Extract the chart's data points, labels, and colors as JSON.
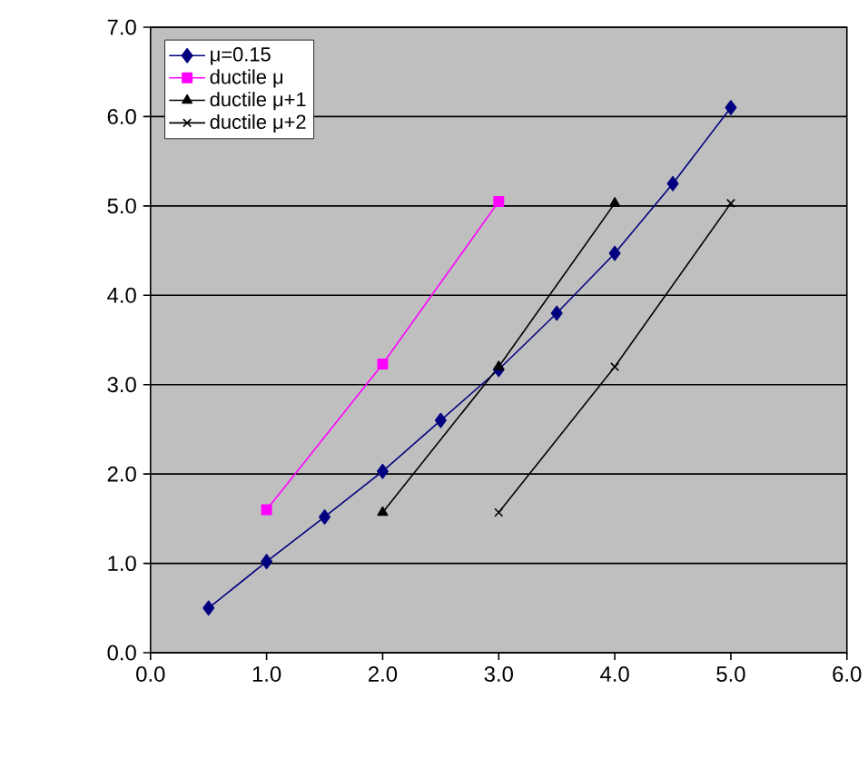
{
  "chart_data": {
    "type": "line",
    "x": [
      0.5,
      1.0,
      1.5,
      2.0,
      2.5,
      3.0,
      3.5,
      4.0,
      4.5,
      5.0
    ],
    "series": [
      {
        "name": "μ=0.15",
        "color": "#000080",
        "marker": "diamond",
        "values": [
          0.5,
          1.02,
          1.52,
          2.03,
          2.6,
          3.17,
          3.8,
          4.47,
          5.25,
          6.1
        ]
      },
      {
        "name": "ductile μ",
        "color": "#ff00ff",
        "marker": "square",
        "x": [
          1.0,
          2.0,
          3.0
        ],
        "values": [
          1.6,
          3.23,
          5.05
        ]
      },
      {
        "name": "ductile μ+1",
        "color": "#000000",
        "marker": "triangle",
        "x": [
          2.0,
          3.0,
          4.0
        ],
        "values": [
          1.57,
          3.2,
          5.03
        ]
      },
      {
        "name": "ductile μ+2",
        "color": "#000000",
        "marker": "cross",
        "x": [
          3.0,
          4.0,
          5.0
        ],
        "values": [
          1.57,
          3.2,
          5.03
        ]
      }
    ],
    "xlim": [
      0,
      6
    ],
    "ylim": [
      0,
      7
    ],
    "xticks": [
      {
        "value": 0,
        "label": "0.0"
      },
      {
        "value": 1,
        "label": "1.0"
      },
      {
        "value": 2,
        "label": "2.0"
      },
      {
        "value": 3,
        "label": "3.0"
      },
      {
        "value": 4,
        "label": "4.0"
      },
      {
        "value": 5,
        "label": "5.0"
      },
      {
        "value": 6,
        "label": "6.0"
      }
    ],
    "yticks": [
      {
        "value": 0,
        "label": "0.0"
      },
      {
        "value": 1,
        "label": "1.0"
      },
      {
        "value": 2,
        "label": "2.0"
      },
      {
        "value": 3,
        "label": "3.0"
      },
      {
        "value": 4,
        "label": "4.0"
      },
      {
        "value": 5,
        "label": "5.0"
      },
      {
        "value": 6,
        "label": "6.0"
      },
      {
        "value": 7,
        "label": "7.0"
      }
    ],
    "grid": "y",
    "legend": "top left",
    "line_style": "solid"
  }
}
